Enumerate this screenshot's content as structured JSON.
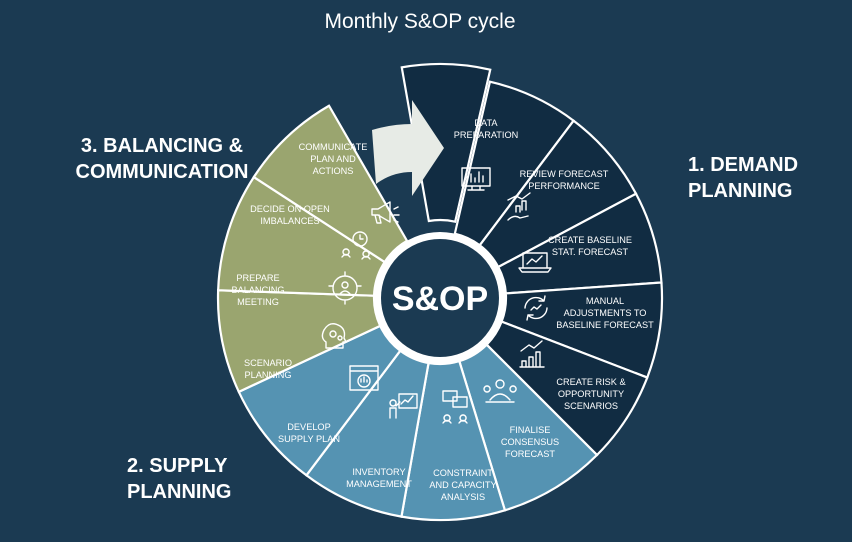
{
  "title": "Monthly S&OP cycle",
  "center_label": "S&OP",
  "colors": {
    "background": "#1b3a52",
    "demand": "#112c42",
    "supply": "#5593b2",
    "balancing": "#9aa56f",
    "arrow": "#e7ebe6",
    "center": "#1b3a52",
    "text": "#ffffff"
  },
  "phases": {
    "demand": {
      "line1": "1. DEMAND",
      "line2": "PLANNING"
    },
    "supply": {
      "line1": "2. SUPPLY",
      "line2": "PLANNING"
    },
    "balancing": {
      "line1": "3. BALANCING &",
      "line2": "COMMUNICATION"
    }
  },
  "segments": [
    {
      "group": "demand",
      "lines": [
        "DATA",
        "PREPARATION"
      ],
      "icon": "monitor-chart-icon"
    },
    {
      "group": "demand",
      "lines": [
        "REVIEW FORECAST",
        "PERFORMANCE"
      ],
      "icon": "hand-growth-chart-icon"
    },
    {
      "group": "demand",
      "lines": [
        "CREATE BASELINE",
        "STAT. FORECAST"
      ],
      "icon": "laptop-trend-icon"
    },
    {
      "group": "demand",
      "lines": [
        "MANUAL",
        "ADJUSTMENTS TO",
        "BASELINE FORECAST"
      ],
      "icon": "refresh-cycle-icon"
    },
    {
      "group": "demand",
      "lines": [
        "CREATE RISK &",
        "OPPORTUNITY",
        "SCENARIOS"
      ],
      "icon": "bar-chart-growth-icon"
    },
    {
      "group": "demand",
      "lines": [
        "FINALISE",
        "CONSENSUS",
        "FORECAST"
      ],
      "icon": "team-meeting-icon"
    },
    {
      "group": "supply",
      "lines": [
        "CONSTRAINT",
        "AND CAPACITY",
        "ANALYSIS"
      ],
      "icon": "collaboration-icon"
    },
    {
      "group": "supply",
      "lines": [
        "INVENTORY",
        "MANAGEMENT"
      ],
      "icon": "presenter-board-icon"
    },
    {
      "group": "supply",
      "lines": [
        "DEVELOP",
        "SUPPLY PLAN"
      ],
      "icon": "browser-analysis-icon"
    },
    {
      "group": "supply",
      "lines": [
        "SCENARIO",
        "PLANNING"
      ],
      "icon": "head-gears-icon"
    },
    {
      "group": "balancing",
      "lines": [
        "PREPARE",
        "BALANCING",
        "MEETING"
      ],
      "icon": "gear-team-icon"
    },
    {
      "group": "balancing",
      "lines": [
        "DECIDE ON OPEN",
        "IMBALANCES"
      ],
      "icon": "people-clock-icon"
    },
    {
      "group": "balancing",
      "lines": [
        "COMMUNICATE",
        "PLAN AND",
        "ACTIONS"
      ],
      "icon": "megaphone-icon"
    }
  ]
}
